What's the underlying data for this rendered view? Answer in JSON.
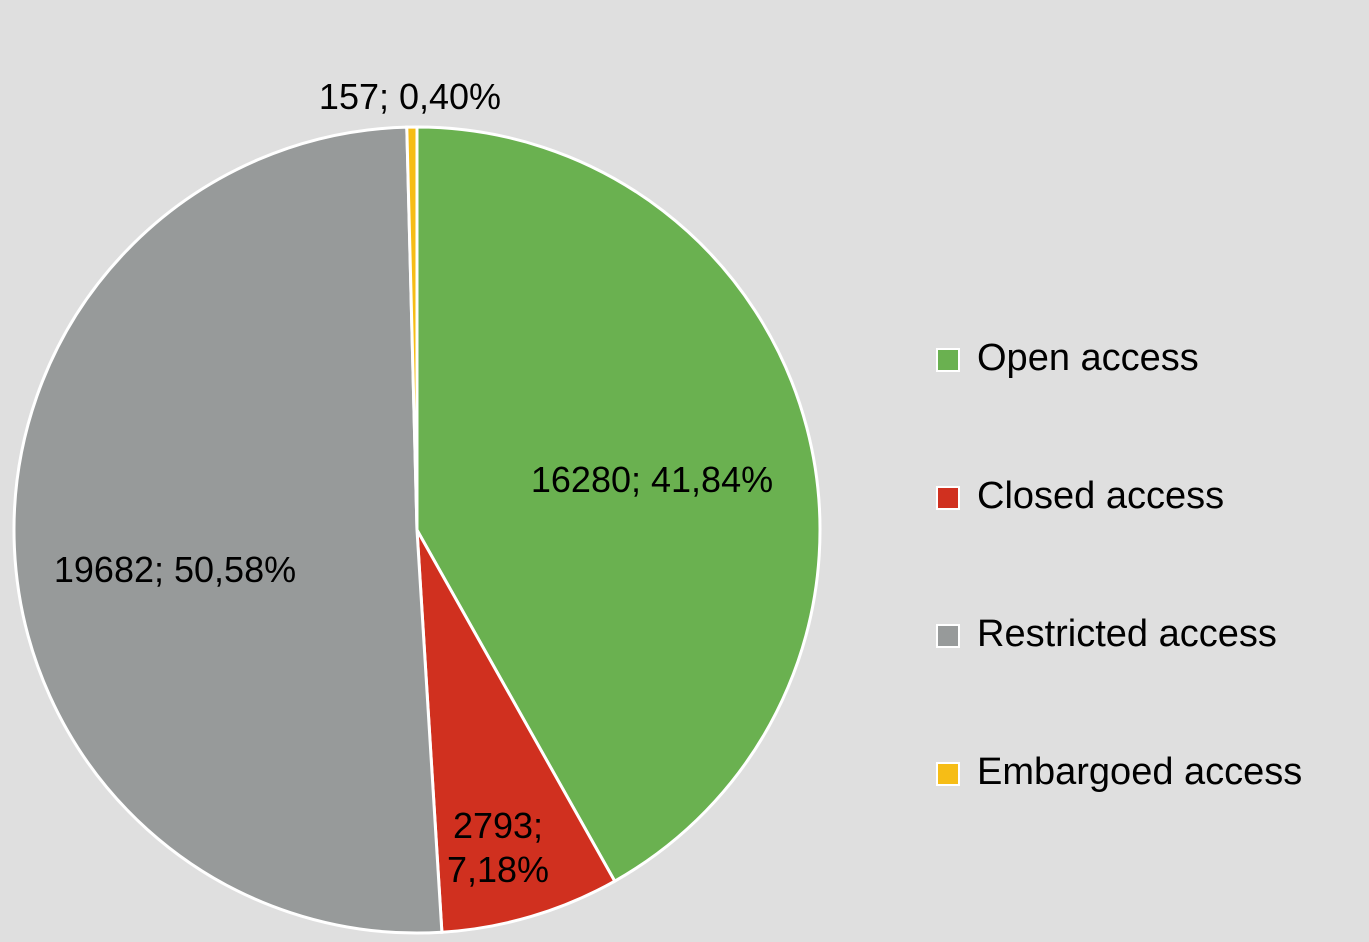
{
  "chart_data": {
    "type": "pie",
    "categories": [
      "Open access",
      "Closed access",
      "Restricted access",
      "Embargoed access"
    ],
    "values": [
      16280,
      2793,
      19682,
      157
    ],
    "value_labels": [
      "16280; 41,84%",
      "2793; 7,18%",
      "19682; 50,58%",
      "157; 0,40%"
    ],
    "colors": [
      "#6ab150",
      "#d0301f",
      "#979a9a",
      "#f6bd16"
    ],
    "legend": "right"
  }
}
